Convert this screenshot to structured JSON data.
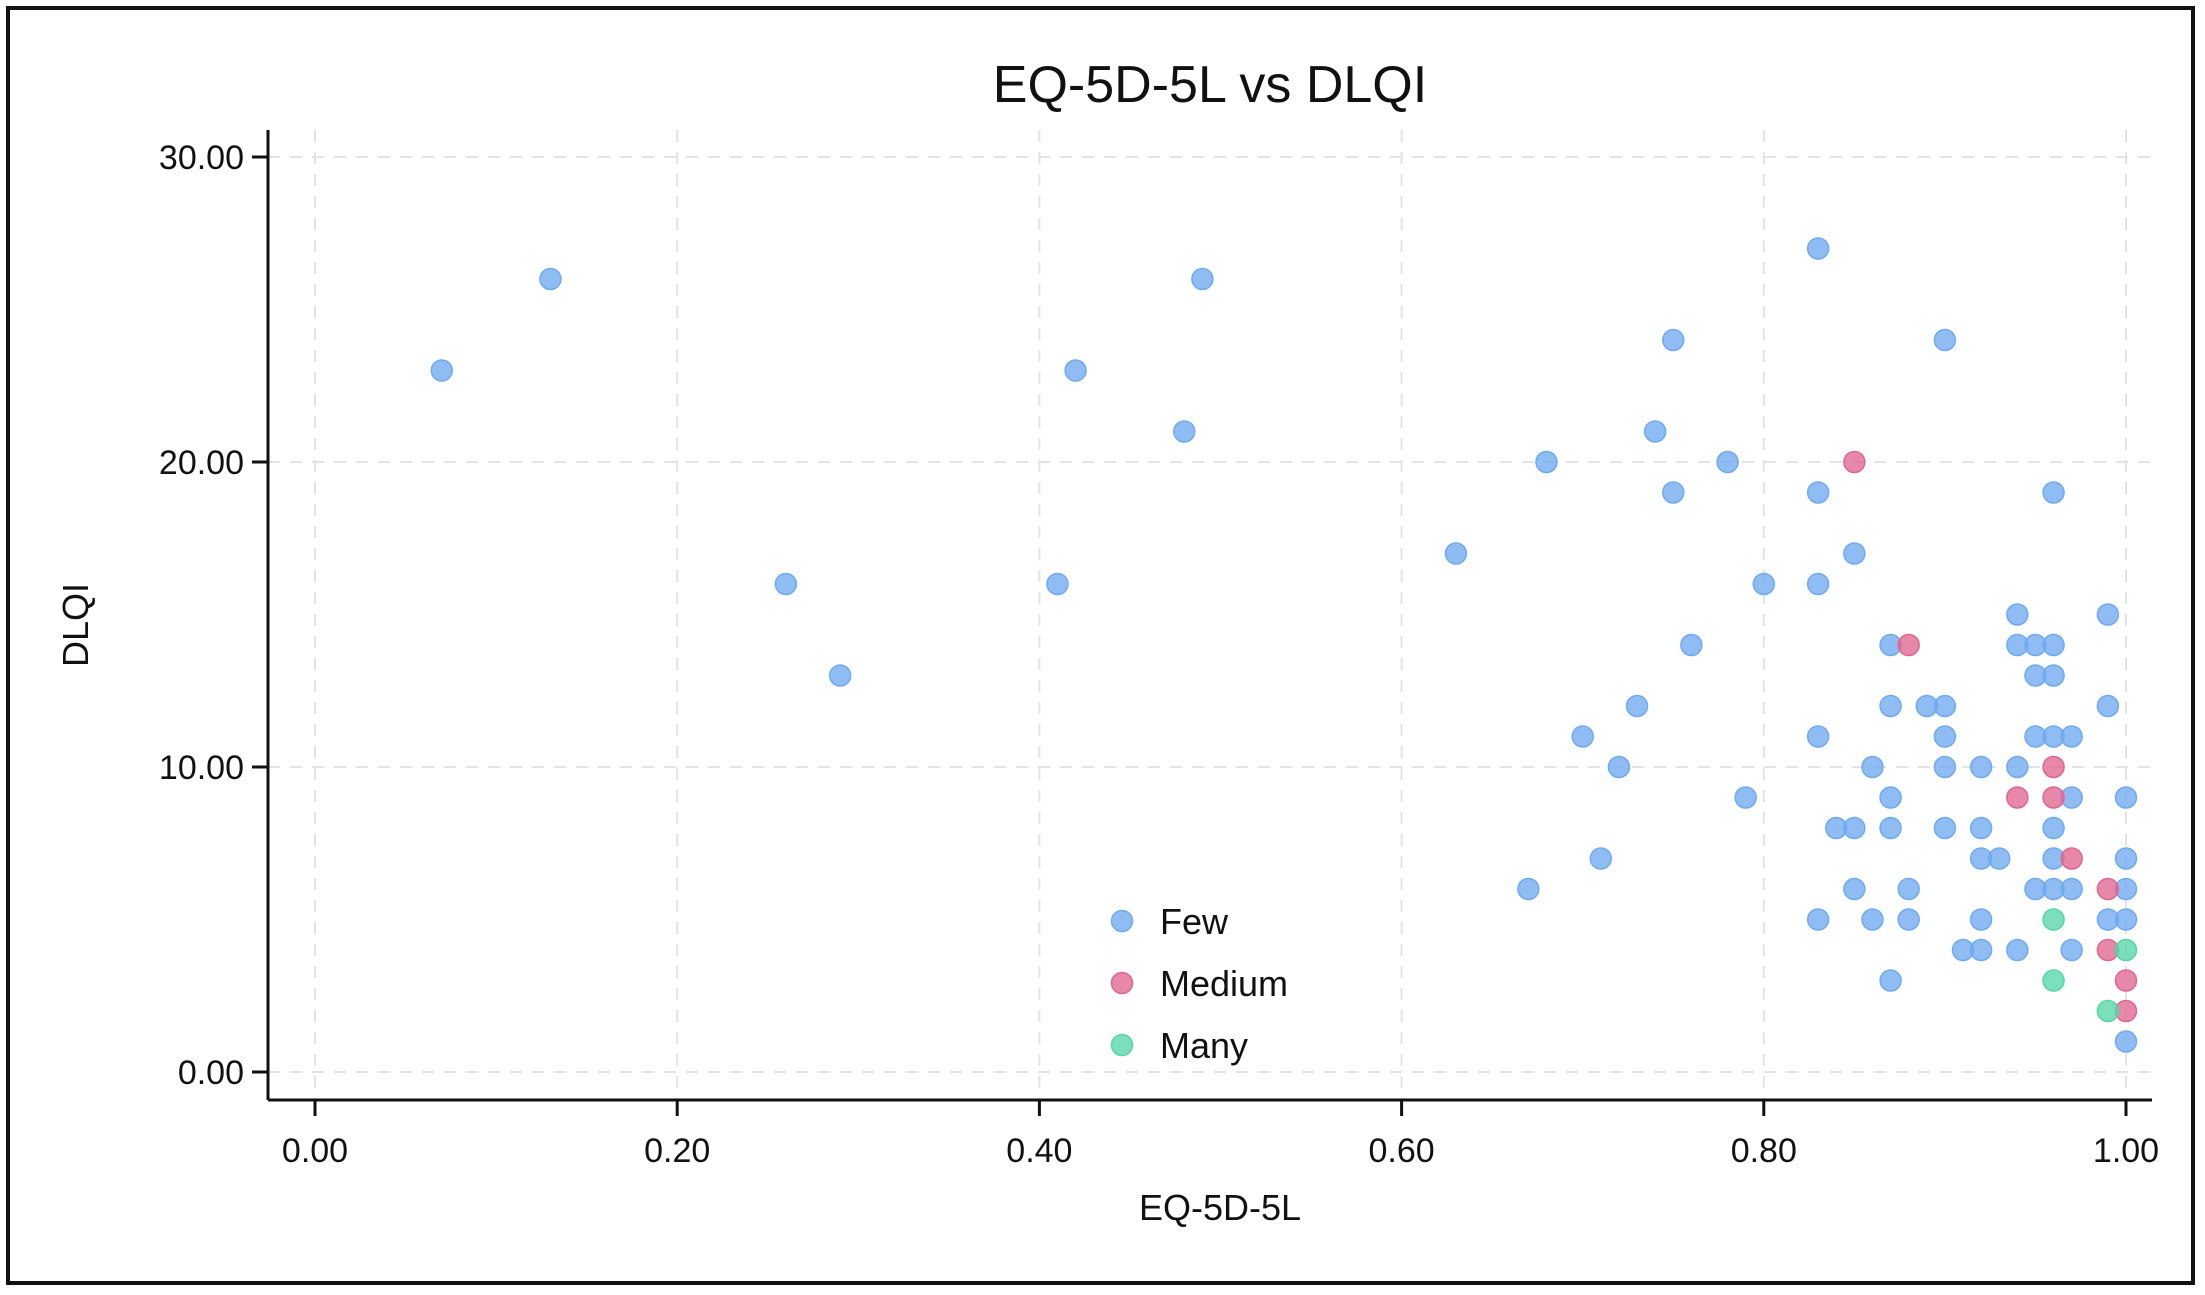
{
  "chart_data": {
    "type": "scatter",
    "title": "EQ-5D-5L vs DLQI",
    "xlabel": "EQ-5D-5L",
    "ylabel": "DLQI",
    "xlim": [
      0,
      1
    ],
    "ylim": [
      0,
      30
    ],
    "x_ticks": [
      "0.00",
      "0.20",
      "0.40",
      "0.60",
      "0.80",
      "1.00"
    ],
    "y_ticks": [
      "0.00",
      "10.00",
      "20.00",
      "30.00"
    ],
    "grid": true,
    "legend_position": "bottom-center",
    "series": [
      {
        "name": "Few",
        "color": "#6faaf0",
        "points": [
          [
            0.07,
            23
          ],
          [
            0.13,
            26
          ],
          [
            0.26,
            16
          ],
          [
            0.29,
            13
          ],
          [
            0.41,
            16
          ],
          [
            0.42,
            23
          ],
          [
            0.48,
            21
          ],
          [
            0.49,
            26
          ],
          [
            0.63,
            17
          ],
          [
            0.67,
            6
          ],
          [
            0.68,
            20
          ],
          [
            0.7,
            11
          ],
          [
            0.71,
            7
          ],
          [
            0.72,
            10
          ],
          [
            0.73,
            12
          ],
          [
            0.74,
            21
          ],
          [
            0.75,
            24
          ],
          [
            0.75,
            19
          ],
          [
            0.76,
            14
          ],
          [
            0.78,
            20
          ],
          [
            0.79,
            9
          ],
          [
            0.8,
            16
          ],
          [
            0.83,
            27
          ],
          [
            0.83,
            19
          ],
          [
            0.83,
            16
          ],
          [
            0.83,
            11
          ],
          [
            0.83,
            5
          ],
          [
            0.84,
            8
          ],
          [
            0.85,
            17
          ],
          [
            0.85,
            8
          ],
          [
            0.85,
            6
          ],
          [
            0.86,
            10
          ],
          [
            0.86,
            5
          ],
          [
            0.87,
            14
          ],
          [
            0.87,
            12
          ],
          [
            0.87,
            9
          ],
          [
            0.87,
            8
          ],
          [
            0.87,
            3
          ],
          [
            0.88,
            6
          ],
          [
            0.88,
            5
          ],
          [
            0.89,
            12
          ],
          [
            0.9,
            24
          ],
          [
            0.9,
            12
          ],
          [
            0.9,
            11
          ],
          [
            0.9,
            10
          ],
          [
            0.9,
            8
          ],
          [
            0.91,
            4
          ],
          [
            0.92,
            10
          ],
          [
            0.92,
            8
          ],
          [
            0.92,
            7
          ],
          [
            0.92,
            5
          ],
          [
            0.92,
            4
          ],
          [
            0.93,
            7
          ],
          [
            0.94,
            15
          ],
          [
            0.94,
            14
          ],
          [
            0.94,
            10
          ],
          [
            0.94,
            4
          ],
          [
            0.95,
            14
          ],
          [
            0.95,
            13
          ],
          [
            0.95,
            11
          ],
          [
            0.95,
            6
          ],
          [
            0.96,
            19
          ],
          [
            0.96,
            14
          ],
          [
            0.96,
            13
          ],
          [
            0.96,
            11
          ],
          [
            0.96,
            8
          ],
          [
            0.96,
            7
          ],
          [
            0.96,
            6
          ],
          [
            0.97,
            11
          ],
          [
            0.97,
            9
          ],
          [
            0.97,
            6
          ],
          [
            0.97,
            4
          ],
          [
            0.99,
            15
          ],
          [
            0.99,
            12
          ],
          [
            0.99,
            5
          ],
          [
            1.0,
            9
          ],
          [
            1.0,
            7
          ],
          [
            1.0,
            6
          ],
          [
            1.0,
            5
          ],
          [
            1.0,
            1
          ]
        ]
      },
      {
        "name": "Medium",
        "color": "#e0668f",
        "points": [
          [
            0.85,
            20
          ],
          [
            0.88,
            14
          ],
          [
            0.94,
            9
          ],
          [
            0.96,
            10
          ],
          [
            0.96,
            9
          ],
          [
            0.97,
            7
          ],
          [
            0.99,
            6
          ],
          [
            0.99,
            4
          ],
          [
            1.0,
            3
          ],
          [
            1.0,
            2
          ]
        ]
      },
      {
        "name": "Many",
        "color": "#55d6a6",
        "points": [
          [
            0.96,
            5
          ],
          [
            0.96,
            3
          ],
          [
            0.99,
            2
          ],
          [
            1.0,
            4
          ]
        ]
      }
    ]
  }
}
